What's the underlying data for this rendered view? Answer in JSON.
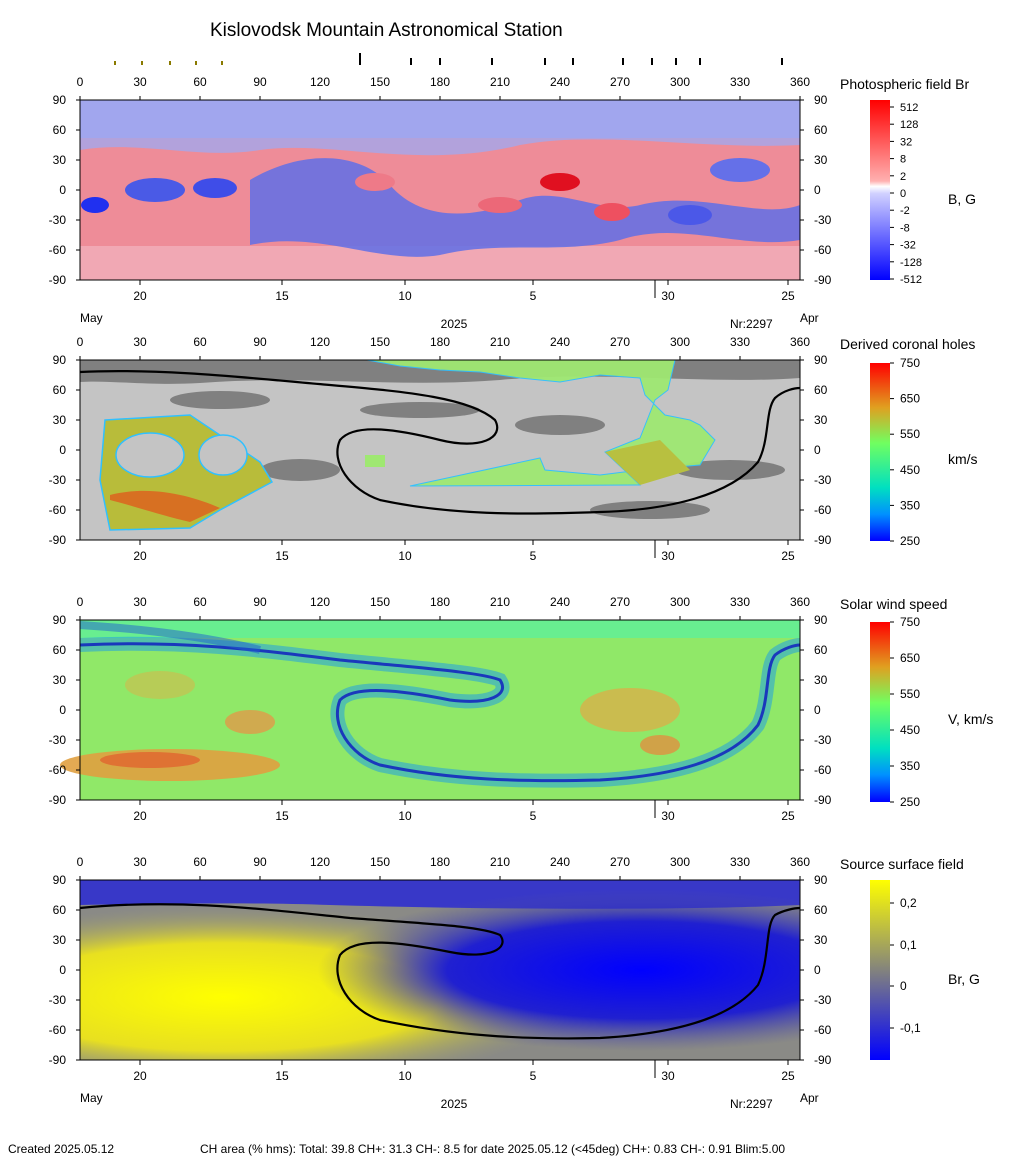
{
  "title": "Kislovodsk Mountain Astronomical Station",
  "lon_ticks": [
    "0",
    "30",
    "60",
    "90",
    "120",
    "150",
    "180",
    "210",
    "240",
    "270",
    "300",
    "330",
    "360"
  ],
  "lat_ticks": [
    "90",
    "60",
    "30",
    "0",
    "-30",
    "-60",
    "-90"
  ],
  "day_ticks": [
    "20",
    "15",
    "10",
    "5",
    "30",
    "25"
  ],
  "month_left": "May",
  "month_right": "Apr",
  "year": "2025",
  "rotation": "Nr:2297",
  "panels": [
    {
      "title": "Photospheric field Br",
      "unit": "B, G",
      "colorbar_ticks": [
        "512",
        "128",
        "32",
        "8",
        "2",
        "0",
        "-2",
        "-8",
        "-32",
        "-128",
        "-512"
      ]
    },
    {
      "title": "Derived coronal holes",
      "unit": "km/s",
      "colorbar_ticks": [
        "750",
        "650",
        "550",
        "450",
        "350",
        "250"
      ]
    },
    {
      "title": "Solar wind speed",
      "unit": "V, km/s",
      "colorbar_ticks": [
        "750",
        "650",
        "550",
        "450",
        "350",
        "250"
      ]
    },
    {
      "title": "Source surface field",
      "unit": "Br, G",
      "colorbar_ticks": [
        "0,2",
        "0,1",
        "0",
        "-0,1"
      ]
    }
  ],
  "footer": {
    "created": "Created  2025.05.12",
    "stats": "CH area (% hms): Total: 39.8 CH+: 31.3    CH-: 8.5 for date 2025.05.12 (<45deg) CH+: 0.83     CH-: 0.91 Blim:5.00"
  }
}
